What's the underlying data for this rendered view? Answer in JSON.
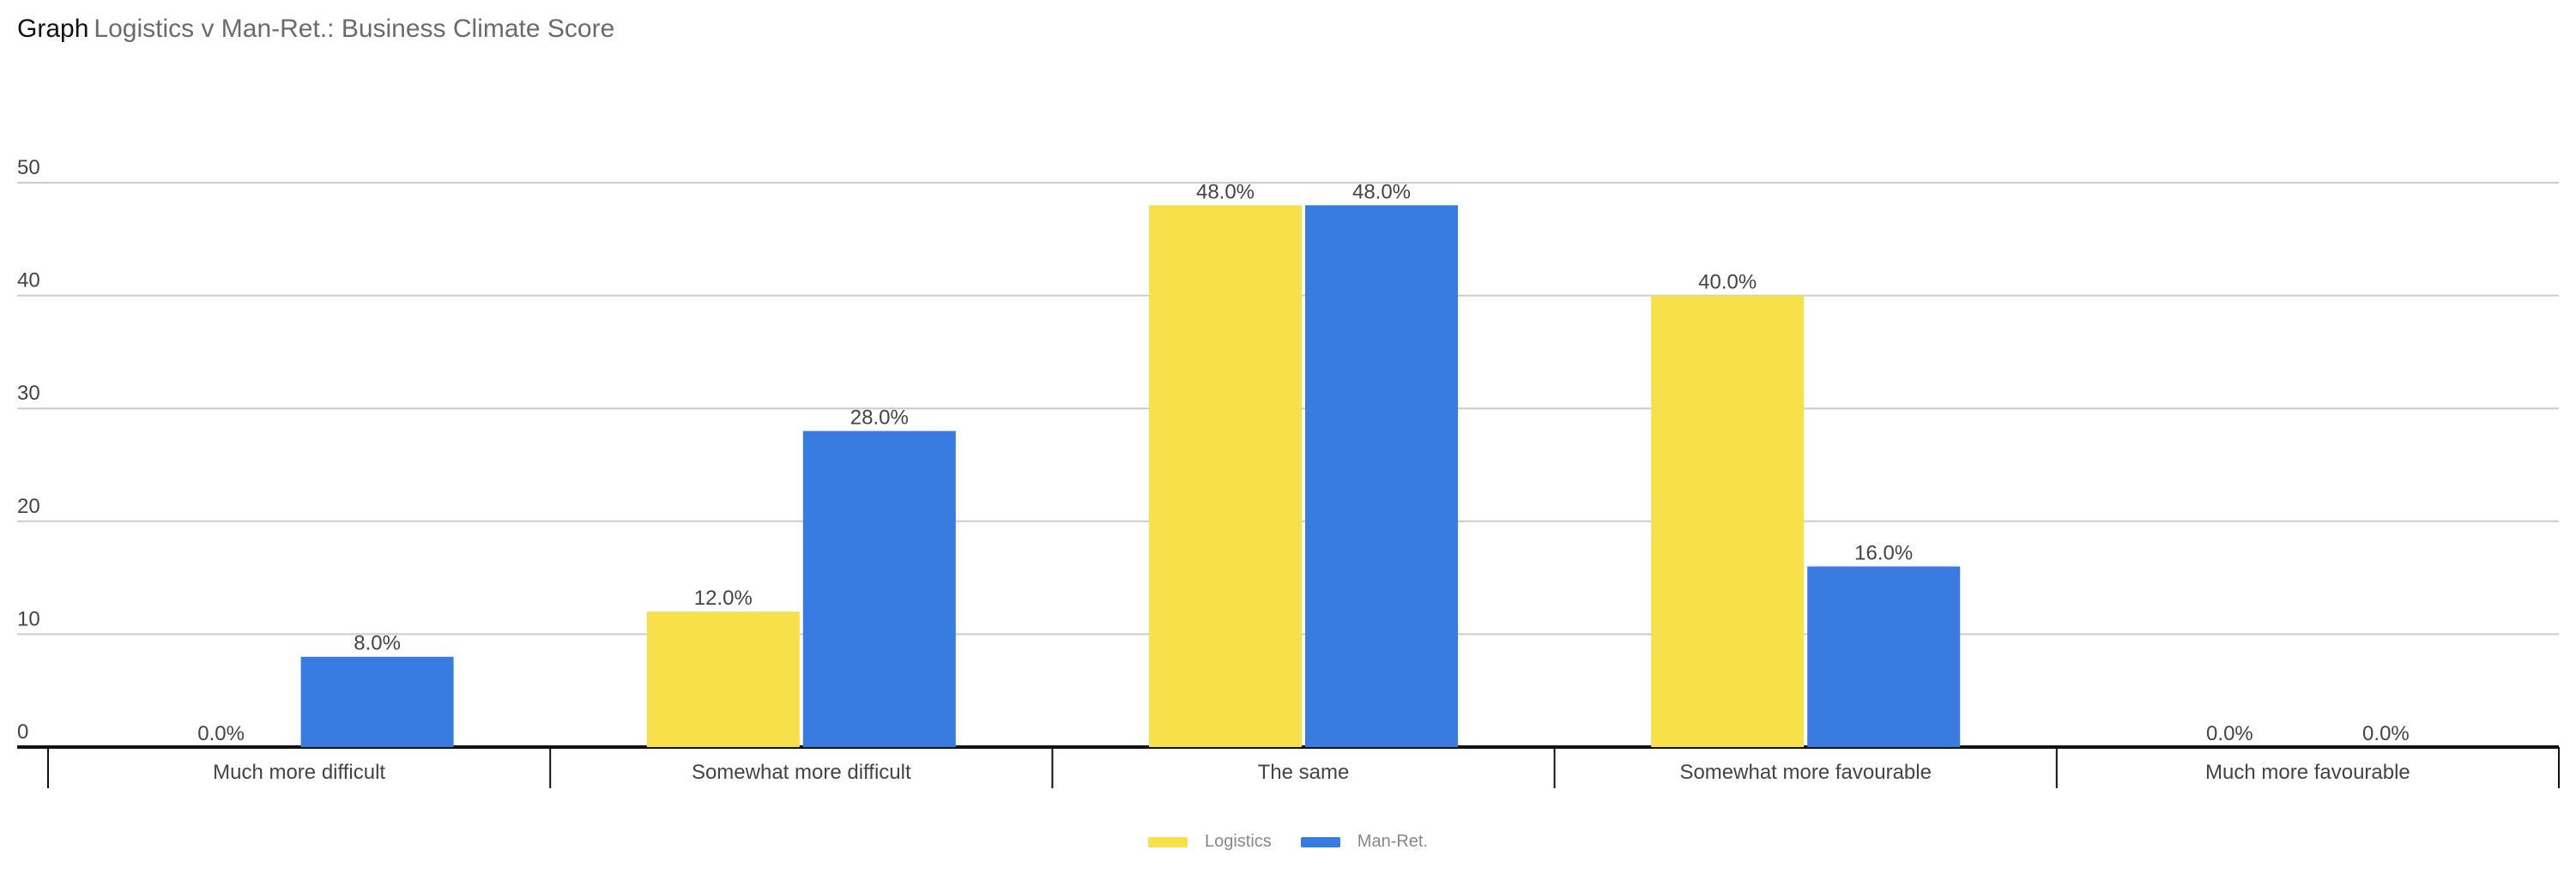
{
  "header": {
    "prefix": "Graph",
    "title": "Logistics v Man-Ret.: Business Climate Score"
  },
  "colors": {
    "logistics": "#F8E04A",
    "man_ret": "#387BE1",
    "gridline": "#cccccc",
    "axis": "#111111",
    "text": "#444444"
  },
  "chart_data": {
    "type": "bar",
    "title": "Logistics v Man-Ret.: Business Climate Score",
    "xlabel": "",
    "ylabel": "",
    "categories": [
      "Much more difficult",
      "Somewhat more difficult",
      "The same",
      "Somewhat more favourable",
      "Much more favourable"
    ],
    "series": [
      {
        "name": "Logistics",
        "values": [
          0,
          12,
          48,
          40,
          0
        ],
        "labels": [
          "0.0%",
          "12.0%",
          "48.0%",
          "40.0%",
          "0.0%"
        ]
      },
      {
        "name": "Man-Ret.",
        "values": [
          8,
          28,
          48,
          16,
          0
        ],
        "labels": [
          "8.0%",
          "28.0%",
          "48.0%",
          "16.0%",
          "0.0%"
        ]
      }
    ],
    "ylim": [
      0,
      50
    ],
    "yticks": [
      0,
      10,
      20,
      30,
      40,
      50
    ],
    "grid": true,
    "legend_position": "bottom-center"
  }
}
